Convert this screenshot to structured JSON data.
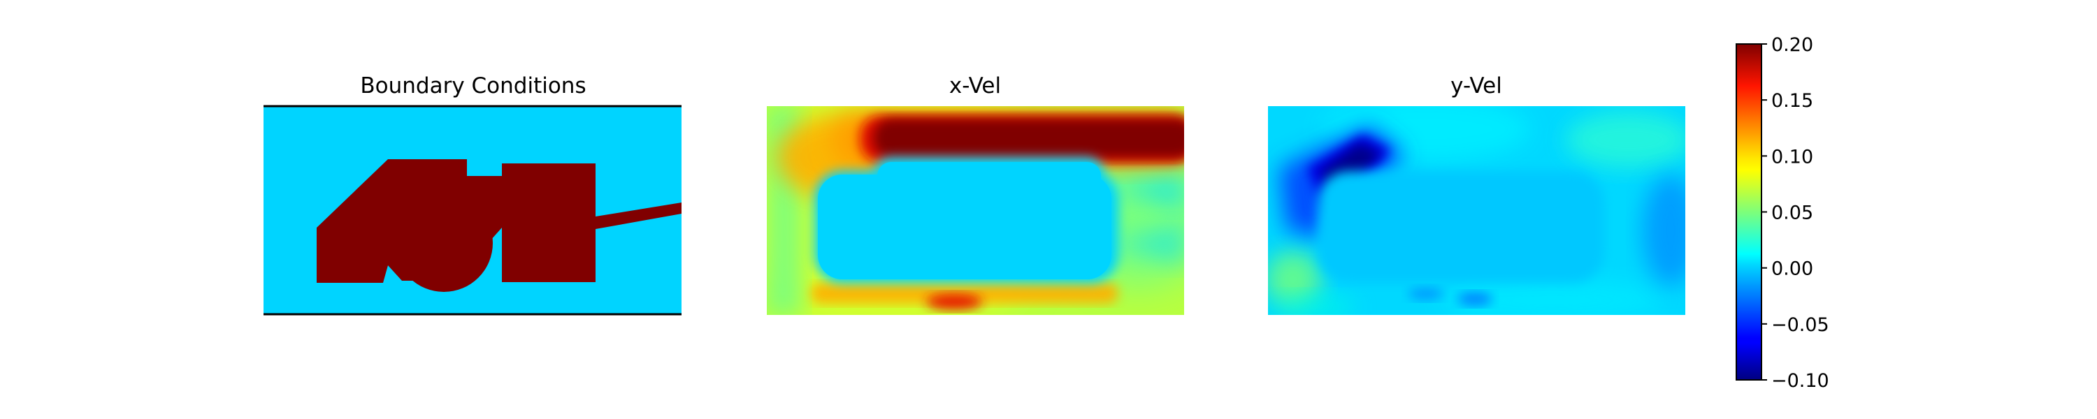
{
  "chart_data": {
    "type": "heatmap",
    "panels": [
      {
        "name": "boundary-conditions",
        "title": "Boundary Conditions",
        "colors": {
          "fluid": "#00d4ff",
          "solid": "#800000",
          "wall": "#000000"
        }
      },
      {
        "name": "x-vel",
        "title": "x-Vel",
        "colorbar_shared": true
      },
      {
        "name": "y-vel",
        "title": "y-Vel",
        "colorbar_shared": true
      }
    ],
    "colorbar": {
      "colormap": "jet",
      "vmin": -0.1,
      "vmax": 0.2,
      "ticks": [
        0.2,
        0.15,
        0.1,
        0.05,
        0.0,
        -0.05,
        -0.1
      ],
      "tick_labels": [
        "0.20",
        "0.15",
        "0.10",
        "0.05",
        "0.00",
        "−0.05",
        "−0.10"
      ]
    }
  }
}
